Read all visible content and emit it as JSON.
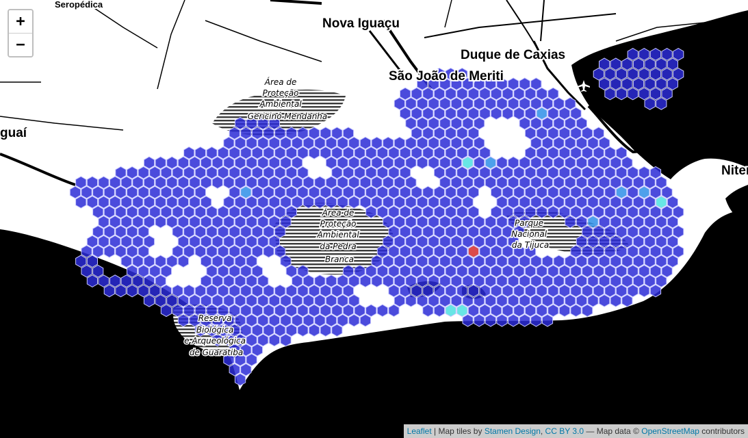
{
  "map": {
    "zoom_in_label": "+",
    "zoom_out_label": "−",
    "places": [
      {
        "label": "Seropédica"
      },
      {
        "label": "Nova Iguaçu"
      },
      {
        "label": "Duque de Caxias"
      },
      {
        "label": "São João de Meriti"
      },
      {
        "label": "guaí"
      },
      {
        "label": "Niter"
      }
    ],
    "protected_areas": [
      {
        "lines": [
          "Área de",
          "Proteção",
          "Ambiental",
          "Gericinó Mendanha"
        ]
      },
      {
        "lines": [
          "Área de",
          "Proteção",
          "Ambiental",
          "da Pedra",
          "Branca"
        ]
      },
      {
        "lines": [
          "Parque",
          "Nacional",
          "da Tijuca"
        ]
      },
      {
        "lines": [
          "Reserva",
          "Biológica",
          "e Arqueológica",
          "de Guaratiba"
        ]
      }
    ],
    "colors": {
      "hex_default": "#2b2bd6",
      "hex_light_blue": "#2f8fe8",
      "hex_cyan": "#4de0e0",
      "hex_red": "#d62b2b",
      "water": "#000000",
      "land": "#ffffff"
    },
    "icons": [
      "airport-icon"
    ]
  },
  "attribution": {
    "leaflet": "Leaflet",
    "sep1": " | Map tiles by ",
    "stamen": "Stamen Design",
    "sep2": ", ",
    "ccby": "CC BY 3.0",
    "sep3": " — Map data © ",
    "osm": "OpenStreetMap",
    "sep4": " contributors"
  }
}
